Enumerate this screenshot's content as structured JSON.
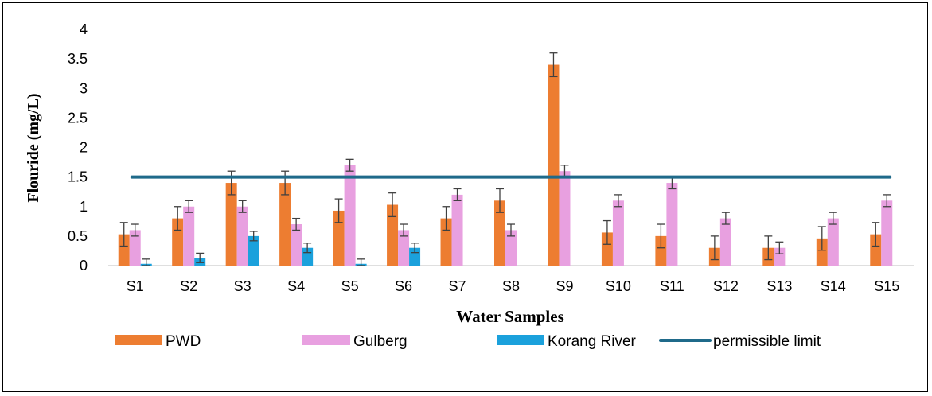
{
  "chart_data": {
    "type": "bar",
    "title": "",
    "xlabel": "Water Samples",
    "ylabel": "Flouride (mg/L)",
    "ylim": [
      0,
      4
    ],
    "yticks": [
      "0",
      "0.5",
      "1",
      "1.5",
      "2",
      "2.5",
      "3",
      "3.5",
      "4"
    ],
    "grid": false,
    "legend_position": "bottom",
    "categories": [
      "S1",
      "S2",
      "S3",
      "S4",
      "S5",
      "S6",
      "S7",
      "S8",
      "S9",
      "S10",
      "S11",
      "S12",
      "S13",
      "S14",
      "S15"
    ],
    "series": [
      {
        "name": "PWD",
        "color": "#ED7D31",
        "values": [
          0.53,
          0.8,
          1.4,
          1.4,
          0.93,
          1.03,
          0.8,
          1.1,
          3.4,
          0.56,
          0.5,
          0.3,
          0.3,
          0.46,
          0.53
        ],
        "errors": [
          0.2,
          0.2,
          0.2,
          0.2,
          0.2,
          0.2,
          0.2,
          0.2,
          0.2,
          0.2,
          0.2,
          0.2,
          0.2,
          0.2,
          0.2
        ]
      },
      {
        "name": "Gulberg",
        "color": "#E8A0E0",
        "values": [
          0.6,
          1.0,
          1.0,
          0.7,
          1.7,
          0.6,
          1.2,
          0.6,
          1.6,
          1.1,
          1.4,
          0.8,
          0.3,
          0.8,
          1.1
        ],
        "errors": [
          0.1,
          0.1,
          0.1,
          0.1,
          0.1,
          0.1,
          0.1,
          0.1,
          0.1,
          0.1,
          0.1,
          0.1,
          0.1,
          0.1,
          0.1
        ]
      },
      {
        "name": "Korang River",
        "color": "#1BA1DC",
        "values": [
          0.03,
          0.13,
          0.5,
          0.3,
          0.03,
          0.3,
          null,
          null,
          null,
          null,
          null,
          null,
          null,
          null,
          null
        ],
        "errors": [
          0.08,
          0.08,
          0.08,
          0.08,
          0.08,
          0.08,
          null,
          null,
          null,
          null,
          null,
          null,
          null,
          null,
          null
        ]
      }
    ],
    "reference_line": {
      "name": "permissible limit",
      "value": 1.5,
      "color": "#1F6A8A"
    }
  }
}
